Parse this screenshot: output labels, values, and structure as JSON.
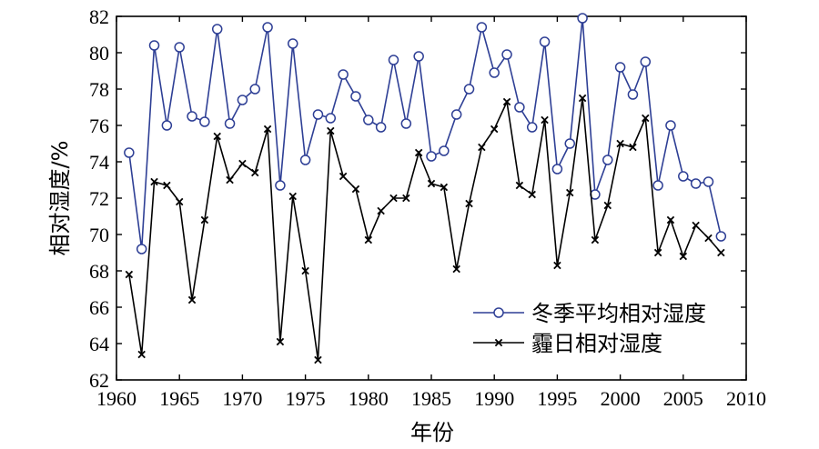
{
  "chart_data": {
    "type": "line",
    "title": "",
    "xlabel": "年份",
    "ylabel": "相对湿度/%",
    "xlim": [
      1960,
      2010
    ],
    "ylim": [
      62,
      82
    ],
    "xticks": [
      1960,
      1965,
      1970,
      1975,
      1980,
      1985,
      1990,
      1995,
      2000,
      2005,
      2010
    ],
    "yticks": [
      62,
      64,
      66,
      68,
      70,
      72,
      74,
      76,
      78,
      80,
      82
    ],
    "grid": false,
    "legend_position": "bottom-right",
    "x": [
      1961,
      1962,
      1963,
      1964,
      1965,
      1966,
      1967,
      1968,
      1969,
      1970,
      1971,
      1972,
      1973,
      1974,
      1975,
      1976,
      1977,
      1978,
      1979,
      1980,
      1981,
      1982,
      1983,
      1984,
      1985,
      1986,
      1987,
      1988,
      1989,
      1990,
      1991,
      1992,
      1993,
      1994,
      1995,
      1996,
      1997,
      1998,
      1999,
      2000,
      2001,
      2002,
      2003,
      2004,
      2005,
      2006,
      2007,
      2008
    ],
    "series": [
      {
        "name": "冬季平均相对湿度",
        "color": "#2e3f95",
        "marker": "circle",
        "values": [
          74.5,
          69.2,
          80.4,
          76.0,
          80.3,
          76.5,
          76.2,
          81.3,
          76.1,
          77.4,
          78.0,
          81.4,
          72.7,
          80.5,
          74.1,
          76.6,
          76.4,
          78.8,
          77.6,
          76.3,
          75.9,
          79.6,
          76.1,
          79.8,
          74.3,
          74.6,
          76.6,
          78.0,
          81.4,
          78.9,
          79.9,
          77.0,
          75.9,
          80.6,
          73.6,
          75.0,
          81.9,
          72.2,
          74.1,
          79.2,
          77.7,
          79.5,
          72.7,
          76.0,
          73.2,
          72.8,
          72.9,
          69.9
        ]
      },
      {
        "name": "霾日相对湿度",
        "color": "#000000",
        "marker": "x",
        "values": [
          67.8,
          63.4,
          72.9,
          72.7,
          71.8,
          66.4,
          70.8,
          75.4,
          73.0,
          73.9,
          73.4,
          75.8,
          64.1,
          72.1,
          68.0,
          63.1,
          75.7,
          73.2,
          72.5,
          69.7,
          71.3,
          72.0,
          72.0,
          74.5,
          72.8,
          72.6,
          68.1,
          71.7,
          74.8,
          75.8,
          77.3,
          72.7,
          72.2,
          76.3,
          68.3,
          72.3,
          77.5,
          69.7,
          71.6,
          75.0,
          74.8,
          76.4,
          69.0,
          70.8,
          68.8,
          70.5,
          69.8,
          69.0
        ]
      }
    ]
  }
}
